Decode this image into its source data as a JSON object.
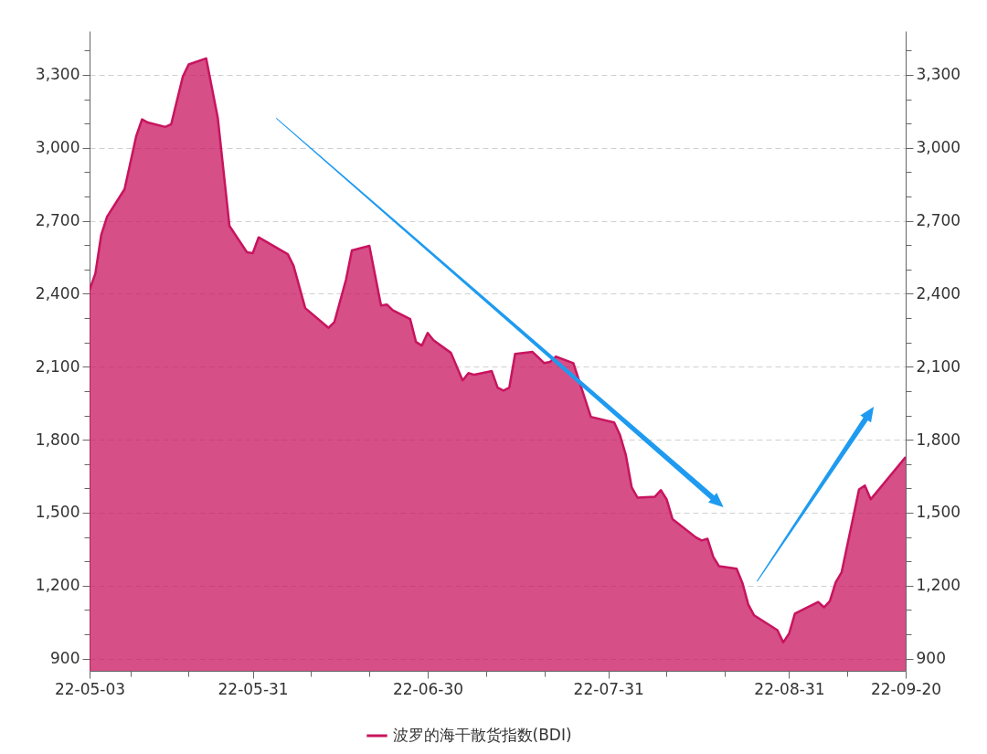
{
  "chart_data": {
    "type": "area",
    "x": [
      "--05-03",
      "--05-04",
      "--05-05",
      "--05-06",
      "--05-09",
      "--05-11",
      "--05-12",
      "--05-13",
      "--05-16",
      "--05-17",
      "--05-19",
      "--05-20",
      "--05-23",
      "--05-25",
      "--05-27",
      "--05-30",
      "--05-31",
      "--06-01",
      "--06-06",
      "--06-07",
      "--06-09",
      "--06-13",
      "--06-14",
      "--06-16",
      "--06-17",
      "--06-20",
      "--06-22",
      "--06-23",
      "--06-24",
      "--06-27",
      "--06-28",
      "--06-29",
      "--06-30",
      "--07-01",
      "--07-04",
      "--07-06",
      "--07-07",
      "--07-08",
      "--07-11",
      "--07-12",
      "--07-13",
      "--07-14",
      "--07-15",
      "--07-18",
      "--07-19",
      "--07-20",
      "--07-21",
      "--07-22",
      "--07-25",
      "--07-28",
      "--08-01",
      "--08-02",
      "--08-03",
      "--08-04",
      "--08-05",
      "--08-08",
      "--08-09",
      "--08-10",
      "--08-11",
      "--08-15",
      "--08-16",
      "--08-17",
      "--08-18",
      "--08-19",
      "--08-22",
      "--08-23",
      "--08-24",
      "--08-25",
      "--08-29",
      "--08-30",
      "--08-31",
      "--09-01",
      "--09-05",
      "--09-06",
      "--09-07",
      "--09-08",
      "--09-09",
      "--09-12",
      "--09-13",
      "--09-14",
      "--09-20"
    ],
    "series": [
      {
        "name": "波罗的海干散货指数(BDI)",
        "color": "#c8145f",
        "values": [
          2416,
          2484,
          2642,
          2717,
          2830,
          3048,
          3117,
          3104,
          3086,
          3097,
          3293,
          3343,
          3368,
          3123,
          2679,
          2571,
          2567,
          2632,
          2563,
          2515,
          2341,
          2260,
          2284,
          2459,
          2578,
          2597,
          2352,
          2356,
          2333,
          2296,
          2202,
          2187,
          2239,
          2209,
          2157,
          2044,
          2074,
          2067,
          2082,
          2014,
          2002,
          2014,
          2153,
          2161,
          2138,
          2115,
          2120,
          2142,
          2115,
          1894,
          1871,
          1819,
          1737,
          1605,
          1562,
          1566,
          1593,
          1555,
          1474,
          1399,
          1386,
          1393,
          1318,
          1280,
          1270,
          1211,
          1123,
          1078,
          1017,
          967,
          1003,
          1085,
          1133,
          1111,
          1137,
          1214,
          1254,
          1596,
          1612,
          1555,
          1729
        ]
      }
    ],
    "xlim": [
      "--05-03",
      "--09-20"
    ],
    "xticks": [
      {
        "value": "--05-03",
        "label": "22-05-03"
      },
      {
        "value": "--05-10",
        "label": null
      },
      {
        "value": "--05-20",
        "label": null
      },
      {
        "value": "--05-31",
        "label": "22-05-31"
      },
      {
        "value": "--06-10",
        "label": null
      },
      {
        "value": "--06-20",
        "label": null
      },
      {
        "value": "--06-30",
        "label": "22-06-30"
      },
      {
        "value": "--07-10",
        "label": null
      },
      {
        "value": "--07-20",
        "label": null
      },
      {
        "value": "--07-31",
        "label": "22-07-31"
      },
      {
        "value": "--08-10",
        "label": null
      },
      {
        "value": "--08-20",
        "label": null
      },
      {
        "value": "--08-31",
        "label": "22-08-31"
      },
      {
        "value": "--09-10",
        "label": null
      },
      {
        "value": "--09-20",
        "label": "22-09-20"
      }
    ],
    "ylim": [
      850,
      3480
    ],
    "yticks": [
      {
        "value": 900,
        "label": "900"
      },
      {
        "value": 1000,
        "label": null
      },
      {
        "value": 1100,
        "label": null
      },
      {
        "value": 1200,
        "label": "1,200"
      },
      {
        "value": 1300,
        "label": null
      },
      {
        "value": 1400,
        "label": null
      },
      {
        "value": 1500,
        "label": "1,500"
      },
      {
        "value": 1600,
        "label": null
      },
      {
        "value": 1700,
        "label": null
      },
      {
        "value": 1800,
        "label": "1,800"
      },
      {
        "value": 1900,
        "label": null
      },
      {
        "value": 2000,
        "label": null
      },
      {
        "value": 2100,
        "label": "2,100"
      },
      {
        "value": 2200,
        "label": null
      },
      {
        "value": 2300,
        "label": null
      },
      {
        "value": 2400,
        "label": "2,400"
      },
      {
        "value": 2500,
        "label": null
      },
      {
        "value": 2600,
        "label": null
      },
      {
        "value": 2700,
        "label": "2,700"
      },
      {
        "value": 2800,
        "label": null
      },
      {
        "value": 2900,
        "label": null
      },
      {
        "value": 3000,
        "label": "3,000"
      },
      {
        "value": 3100,
        "label": null
      },
      {
        "value": 3200,
        "label": null
      },
      {
        "value": 3300,
        "label": "3,300"
      },
      {
        "value": 3400,
        "label": null
      }
    ],
    "y2lim": [
      850,
      3480
    ],
    "y2ticks": [
      {
        "value": 900,
        "label": "900"
      },
      {
        "value": 1000,
        "label": null
      },
      {
        "value": 1100,
        "label": null
      },
      {
        "value": 1200,
        "label": "1,200"
      },
      {
        "value": 1300,
        "label": null
      },
      {
        "value": 1400,
        "label": null
      },
      {
        "value": 1500,
        "label": "1,500"
      },
      {
        "value": 1600,
        "label": null
      },
      {
        "value": 1700,
        "label": null
      },
      {
        "value": 1800,
        "label": "1,800"
      },
      {
        "value": 1900,
        "label": null
      },
      {
        "value": 2000,
        "label": null
      },
      {
        "value": 2100,
        "label": "2,100"
      },
      {
        "value": 2200,
        "label": null
      },
      {
        "value": 2300,
        "label": null
      },
      {
        "value": 2400,
        "label": "2,400"
      },
      {
        "value": 2500,
        "label": null
      },
      {
        "value": 2600,
        "label": null
      },
      {
        "value": 2700,
        "label": "2,700"
      },
      {
        "value": 2800,
        "label": null
      },
      {
        "value": 2900,
        "label": null
      },
      {
        "value": 3000,
        "label": "3,000"
      },
      {
        "value": 3100,
        "label": null
      },
      {
        "value": 3200,
        "label": null
      },
      {
        "value": 3300,
        "label": "3,300"
      },
      {
        "value": 3400,
        "label": null
      }
    ],
    "grid": "y",
    "legend": "bottom"
  }
}
